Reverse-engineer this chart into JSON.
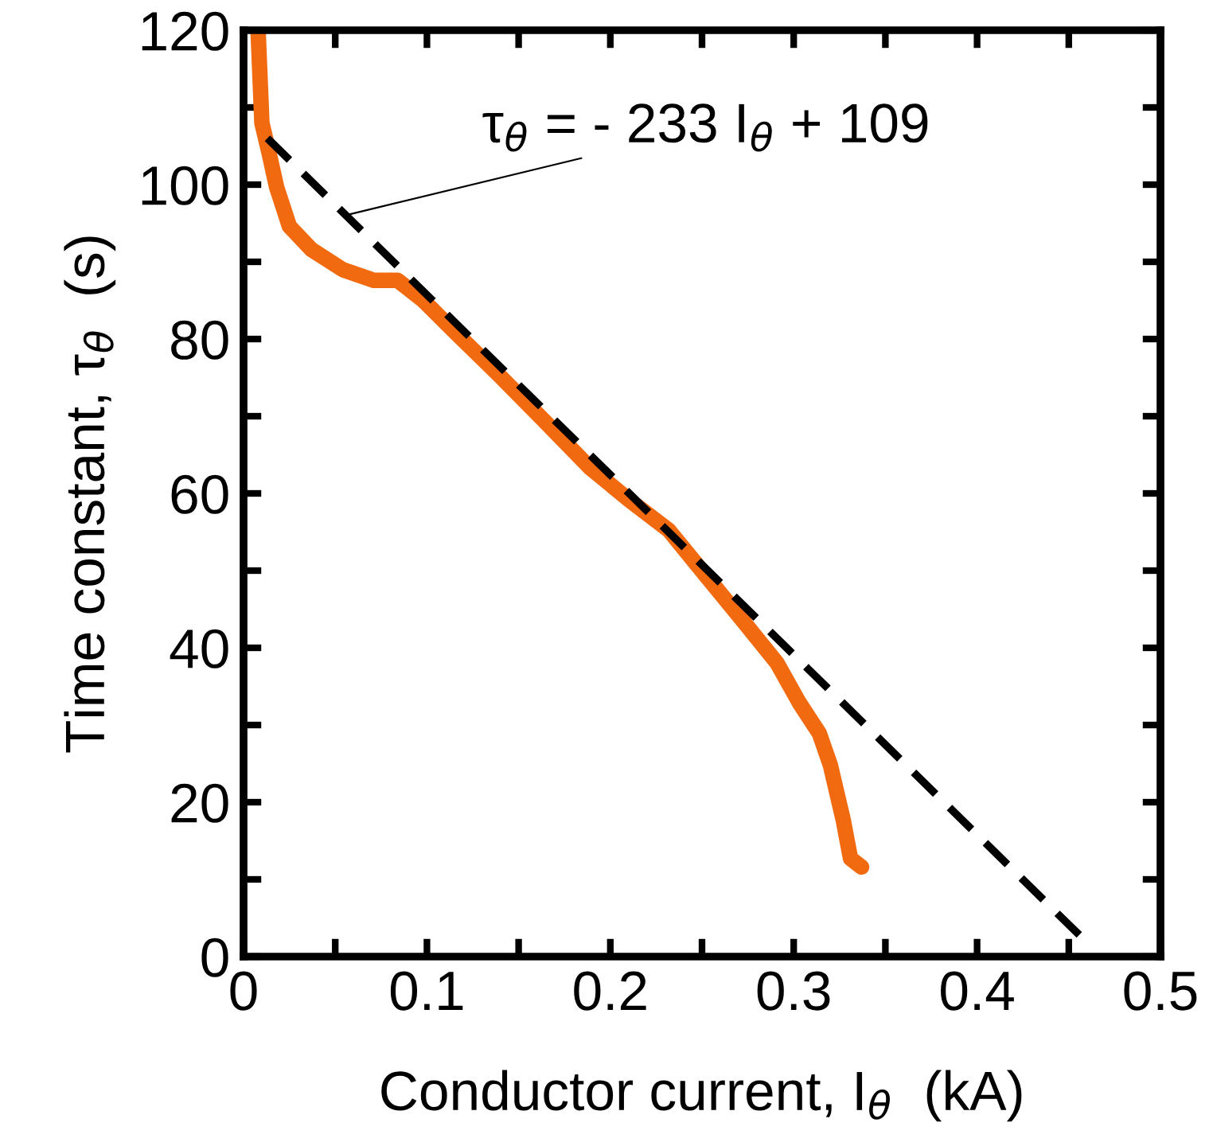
{
  "chart_data": {
    "type": "line",
    "xlabel": "Conductor current, I$_{θ}$  (kA)",
    "ylabel": "Time constant, τ$_{θ}$  (s)",
    "xlim": [
      0,
      0.5
    ],
    "ylim": [
      0,
      120
    ],
    "xticks": [
      0,
      {
        "value": 0.05,
        "label": null
      },
      0.1,
      {
        "value": 0.15,
        "label": null
      },
      0.2,
      {
        "value": 0.25,
        "label": null
      },
      0.3,
      {
        "value": 0.35,
        "label": null
      },
      0.4,
      {
        "value": 0.45,
        "label": null
      },
      0.5
    ],
    "yticks": [
      0,
      {
        "value": 10,
        "label": null
      },
      20,
      {
        "value": 30,
        "label": null
      },
      40,
      {
        "value": 50,
        "label": null
      },
      60,
      {
        "value": 70,
        "label": null
      },
      80,
      {
        "value": 90,
        "label": null
      },
      100,
      {
        "value": 110,
        "label": null
      },
      120
    ],
    "grid": false,
    "legend": false,
    "series": [
      {
        "color": "#f26a10",
        "line_style": "solid",
        "x": [
          0.008,
          0.01,
          0.014,
          0.018,
          0.025,
          0.037,
          0.054,
          0.071,
          0.084,
          0.098,
          0.117,
          0.139,
          0.164,
          0.189,
          0.21,
          0.232,
          0.253,
          0.274,
          0.291,
          0.303,
          0.314,
          0.32,
          0.327,
          0.331,
          0.337
        ],
        "values": [
          119.5,
          108,
          104,
          99.7,
          94.6,
          91.6,
          89,
          87.6,
          87.6,
          85,
          80.5,
          75.4,
          69.4,
          63.3,
          59.2,
          55.2,
          49.1,
          43,
          38,
          32.9,
          28.9,
          24.8,
          17.7,
          12.7,
          11.6
        ]
      },
      {
        "color": "#000000",
        "line_style": "dashed",
        "x": [
          0.013,
          0.457
        ],
        "values": [
          106,
          2.5
        ]
      }
    ],
    "annotations": [
      {
        "text": "τ$_{θ}$ = - 233 I$_{θ}$ + 109",
        "x": 0.055,
        "y": 96
      }
    ]
  }
}
